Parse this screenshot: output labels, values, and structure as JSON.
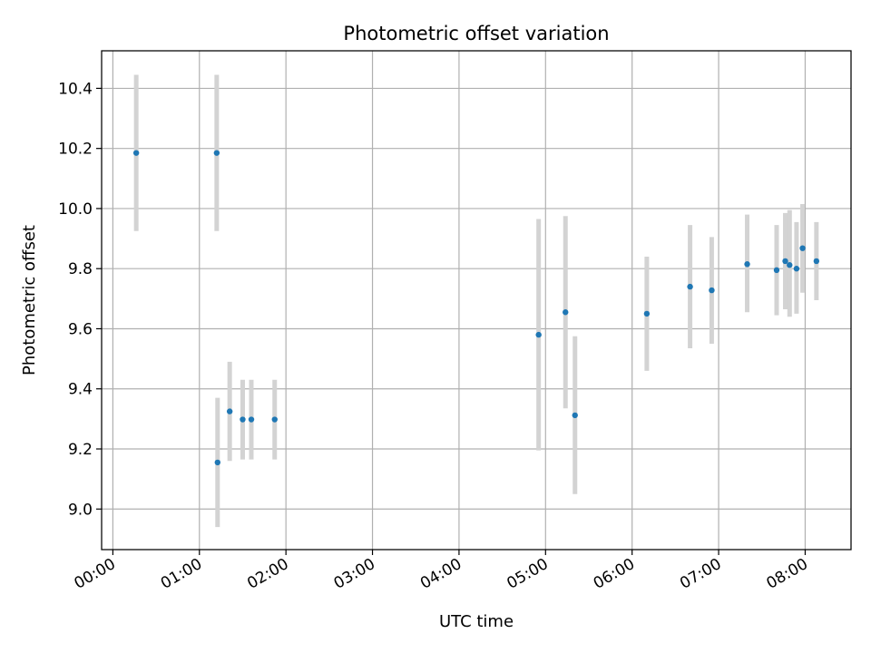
{
  "chart_data": {
    "type": "scatter",
    "title": "Photometric offset variation",
    "xlabel": "UTC time",
    "ylabel": "Photometric offset",
    "x_tick_labels": [
      "00:00",
      "01:00",
      "02:00",
      "03:00",
      "04:00",
      "05:00",
      "06:00",
      "07:00",
      "08:00"
    ],
    "y_tick_labels": [
      "9.0",
      "9.2",
      "9.4",
      "9.6",
      "9.8",
      "10.0",
      "10.2",
      "10.4"
    ],
    "x_unit": "hours UTC",
    "xlim": [
      -0.13,
      8.53
    ],
    "ylim": [
      8.865,
      10.525
    ],
    "grid": true,
    "colors": {
      "point": "#1f77b4",
      "errorbar": "#d3d3d3",
      "grid": "#b0b0b0"
    },
    "points": [
      {
        "x": 0.27,
        "y": 10.185,
        "yerr_low": 9.925,
        "yerr_high": 10.445
      },
      {
        "x": 1.2,
        "y": 10.185,
        "yerr_low": 9.925,
        "yerr_high": 10.445
      },
      {
        "x": 1.21,
        "y": 9.155,
        "yerr_low": 8.94,
        "yerr_high": 9.37
      },
      {
        "x": 1.35,
        "y": 9.325,
        "yerr_low": 9.16,
        "yerr_high": 9.49
      },
      {
        "x": 1.5,
        "y": 9.298,
        "yerr_low": 9.165,
        "yerr_high": 9.43
      },
      {
        "x": 1.6,
        "y": 9.298,
        "yerr_low": 9.165,
        "yerr_high": 9.43
      },
      {
        "x": 1.87,
        "y": 9.298,
        "yerr_low": 9.165,
        "yerr_high": 9.43
      },
      {
        "x": 4.92,
        "y": 9.58,
        "yerr_low": 9.195,
        "yerr_high": 9.965
      },
      {
        "x": 5.23,
        "y": 9.655,
        "yerr_low": 9.335,
        "yerr_high": 9.975
      },
      {
        "x": 5.34,
        "y": 9.312,
        "yerr_low": 9.05,
        "yerr_high": 9.575
      },
      {
        "x": 6.17,
        "y": 9.65,
        "yerr_low": 9.46,
        "yerr_high": 9.84
      },
      {
        "x": 6.67,
        "y": 9.74,
        "yerr_low": 9.535,
        "yerr_high": 9.945
      },
      {
        "x": 6.92,
        "y": 9.728,
        "yerr_low": 9.55,
        "yerr_high": 9.905
      },
      {
        "x": 7.33,
        "y": 9.815,
        "yerr_low": 9.655,
        "yerr_high": 9.98
      },
      {
        "x": 7.67,
        "y": 9.795,
        "yerr_low": 9.645,
        "yerr_high": 9.945
      },
      {
        "x": 7.77,
        "y": 9.825,
        "yerr_low": 9.665,
        "yerr_high": 9.985
      },
      {
        "x": 7.82,
        "y": 9.812,
        "yerr_low": 9.64,
        "yerr_high": 9.995
      },
      {
        "x": 7.9,
        "y": 9.8,
        "yerr_low": 9.65,
        "yerr_high": 9.955
      },
      {
        "x": 7.97,
        "y": 9.868,
        "yerr_low": 9.72,
        "yerr_high": 10.015
      },
      {
        "x": 8.13,
        "y": 9.825,
        "yerr_low": 9.695,
        "yerr_high": 9.955
      }
    ]
  }
}
